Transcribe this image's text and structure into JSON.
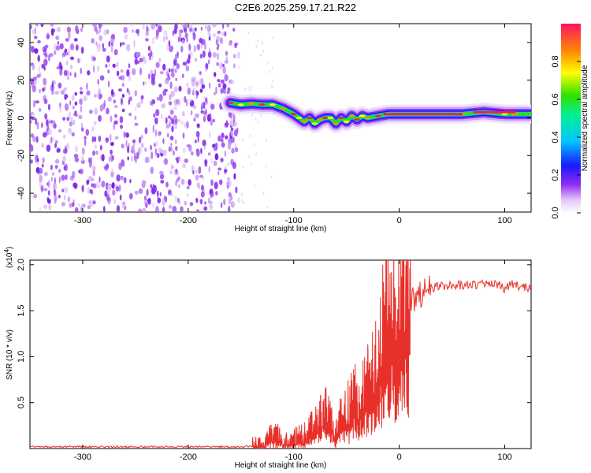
{
  "title": "C2E6.2025.259.17.21.R22",
  "chart_data": [
    {
      "type": "heatmap",
      "title": "C2E6.2025.259.17.21.R22",
      "xlabel": "Height of straight line (km)",
      "ylabel": "Frequency (Hz)",
      "xlim": [
        -350,
        125
      ],
      "ylim": [
        -50,
        50
      ],
      "x_ticks": [
        -300,
        -200,
        -100,
        0,
        100
      ],
      "x_tick_labels": [
        "-300",
        "-200",
        "-100",
        "0",
        "100"
      ],
      "y_ticks": [
        -40,
        -20,
        0,
        20,
        40
      ],
      "y_tick_labels": [
        "-40",
        "-20",
        "0",
        "20",
        "40"
      ],
      "noise_region_x": [
        -350,
        -152
      ],
      "ridge": {
        "x": [
          -160,
          -150,
          -140,
          -130,
          -120,
          -110,
          -100,
          -95,
          -90,
          -85,
          -80,
          -75,
          -70,
          -65,
          -60,
          -55,
          -50,
          -45,
          -40,
          -35,
          -30,
          -20,
          -10,
          0,
          20,
          40,
          60,
          80,
          100,
          110,
          125
        ],
        "freq": [
          8,
          7,
          7.5,
          7,
          7,
          5,
          2,
          0,
          -2,
          0,
          -3,
          -1,
          0,
          0,
          -3,
          0,
          -2,
          1,
          -1,
          1,
          0,
          1,
          2,
          2,
          2,
          2,
          2,
          3,
          2,
          2,
          2
        ]
      },
      "colorbar": {
        "label": "Normalized spectral amplitude",
        "ticks": [
          "0.0",
          "0.2",
          "0.4",
          "0.6",
          "0.8"
        ],
        "tick_values": [
          0.0,
          0.2,
          0.4,
          0.6,
          0.8
        ],
        "range": [
          0,
          1
        ]
      }
    },
    {
      "type": "line",
      "xlabel": "Height of straight line (km)",
      "ylabel": "SNR (10 * v/v)",
      "multiplier_label": "(x10",
      "multiplier_exp": "4",
      "multiplier_close": ")",
      "xlim": [
        -350,
        125
      ],
      "ylim": [
        0,
        2.05
      ],
      "x_ticks": [
        -300,
        -200,
        -100,
        0,
        100
      ],
      "x_tick_labels": [
        "-300",
        "-200",
        "-100",
        "0",
        "100"
      ],
      "y_ticks": [
        0.5,
        1.0,
        1.5,
        2.0
      ],
      "y_tick_labels": [
        "0.5",
        "1.0",
        "1.5",
        "2.0"
      ],
      "color": "#e8302a",
      "series": [
        {
          "name": "SNR",
          "x": [
            -350,
            -150,
            -130,
            -120,
            -115,
            -110,
            -100,
            -90,
            -80,
            -75,
            -70,
            -65,
            -60,
            -55,
            -50,
            -45,
            -40,
            -35,
            -30,
            -25,
            -20,
            -15,
            -10,
            -5,
            0,
            5,
            10,
            15,
            20,
            25,
            30,
            40,
            50,
            60,
            70,
            80,
            90,
            95,
            100,
            105,
            110,
            115,
            120,
            125
          ],
          "y": [
            0.02,
            0.02,
            0.03,
            0.12,
            0.1,
            0.05,
            0.08,
            0.12,
            0.22,
            0.3,
            0.35,
            0.25,
            0.2,
            0.28,
            0.35,
            0.45,
            0.5,
            0.55,
            0.6,
            0.7,
            0.9,
            1.15,
            1.35,
            1.3,
            1.35,
            1.45,
            1.55,
            1.65,
            1.68,
            1.72,
            1.75,
            1.77,
            1.78,
            1.78,
            1.78,
            1.79,
            1.78,
            1.8,
            1.72,
            1.8,
            1.78,
            1.76,
            1.76,
            1.75
          ]
        }
      ]
    }
  ]
}
